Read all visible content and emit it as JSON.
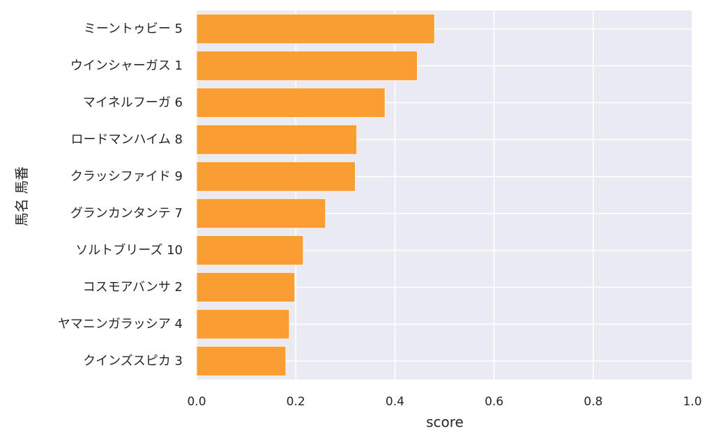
{
  "chart_data": {
    "type": "bar",
    "orientation": "horizontal",
    "title": "",
    "xlabel": "score",
    "ylabel": "馬名 馬番",
    "xlim": [
      0,
      1.0
    ],
    "xticks": [
      "0.0",
      "0.2",
      "0.4",
      "0.6",
      "0.8",
      "1.0"
    ],
    "grid": true,
    "bar_color": "#fb9a29",
    "background_color": "#eaeaf2",
    "categories": [
      "ミーントゥビー 5",
      "ウインシャーガス 1",
      "マイネルフーガ 6",
      "ロードマンハイム 8",
      "クラッシファイド 9",
      "グランカンタンテ 7",
      "ソルトブリーズ 10",
      "コスモアバンサ 2",
      "ヤマニンガラッシア 4",
      "クインズスピカ 3"
    ],
    "values": [
      0.48,
      0.445,
      0.38,
      0.323,
      0.32,
      0.26,
      0.215,
      0.198,
      0.187,
      0.18
    ]
  }
}
